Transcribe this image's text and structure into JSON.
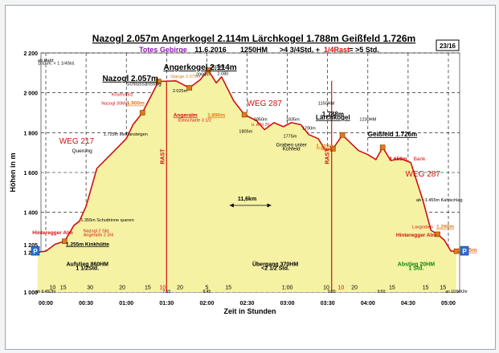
{
  "chart_data": {
    "type": "area",
    "title": "Nazogl 2.057m Angerkogel 2.114m Lärchkogel 1.788m Geißfeld 1.726m",
    "subtitle": {
      "region": "Totes Gebirge",
      "date": "11.6.2016",
      "ascent": "1250HM",
      "time": ">4 3/4Std. +",
      "rest": "1/4Rast",
      "total": "= >5 Std."
    },
    "page": "23/16",
    "xlabel": "Zeit in Stunden",
    "ylabel": "Höhen in m",
    "xlim": [
      0,
      330
    ],
    "ylim": [
      1000,
      2200
    ],
    "x_ticks": [
      {
        "value": 0,
        "label": "00:00"
      },
      {
        "value": 30,
        "label": "00:30"
      },
      {
        "value": 60,
        "label": "01:00"
      },
      {
        "value": 90,
        "label": "01:30"
      },
      {
        "value": 120,
        "label": "02:00"
      },
      {
        "value": 150,
        "label": "02:30"
      },
      {
        "value": 180,
        "label": "03:00"
      },
      {
        "value": 210,
        "label": "03:30"
      },
      {
        "value": 240,
        "label": "04:00"
      },
      {
        "value": 270,
        "label": "04:30"
      },
      {
        "value": 300,
        "label": "05:00"
      }
    ],
    "y_ticks": [
      {
        "value": 1000,
        "label": "1 000"
      },
      {
        "value": 1200,
        "label": "1 200"
      },
      {
        "value": 1400,
        "label": "1 400"
      },
      {
        "value": 1600,
        "label": "1 600"
      },
      {
        "value": 1800,
        "label": "1 800"
      },
      {
        "value": 2000,
        "label": "2 000"
      },
      {
        "value": 2200,
        "label": "2 200"
      }
    ],
    "y_side_labels": [
      {
        "value": 1205,
        "label": "1 205",
        "side": "left"
      }
    ],
    "parking_label": "P",
    "profile": [
      {
        "x": -6,
        "y": 1200
      },
      {
        "x": 0,
        "y": 1205
      },
      {
        "x": 7,
        "y": 1240
      },
      {
        "x": 14,
        "y": 1255
      },
      {
        "x": 21,
        "y": 1335
      },
      {
        "x": 25,
        "y": 1355
      },
      {
        "x": 30,
        "y": 1430
      },
      {
        "x": 38,
        "y": 1620
      },
      {
        "x": 52,
        "y": 1715
      },
      {
        "x": 60,
        "y": 1770
      },
      {
        "x": 65,
        "y": 1840
      },
      {
        "x": 72,
        "y": 1900
      },
      {
        "x": 84,
        "y": 2057
      },
      {
        "x": 97,
        "y": 2060
      },
      {
        "x": 107,
        "y": 2025
      },
      {
        "x": 115,
        "y": 2065
      },
      {
        "x": 121,
        "y": 2114
      },
      {
        "x": 127,
        "y": 2050
      },
      {
        "x": 131,
        "y": 2080
      },
      {
        "x": 140,
        "y": 1960
      },
      {
        "x": 148,
        "y": 1890
      },
      {
        "x": 157,
        "y": 1860
      },
      {
        "x": 163,
        "y": 1815
      },
      {
        "x": 170,
        "y": 1850
      },
      {
        "x": 177,
        "y": 1830
      },
      {
        "x": 183,
        "y": 1850
      },
      {
        "x": 190,
        "y": 1840
      },
      {
        "x": 196,
        "y": 1790
      },
      {
        "x": 203,
        "y": 1770
      },
      {
        "x": 208,
        "y": 1715
      },
      {
        "x": 214,
        "y": 1719
      },
      {
        "x": 221,
        "y": 1788
      },
      {
        "x": 233,
        "y": 1710
      },
      {
        "x": 240,
        "y": 1690
      },
      {
        "x": 246,
        "y": 1665
      },
      {
        "x": 251,
        "y": 1726
      },
      {
        "x": 257,
        "y": 1660
      },
      {
        "x": 264,
        "y": 1670
      },
      {
        "x": 272,
        "y": 1650
      },
      {
        "x": 281,
        "y": 1460
      },
      {
        "x": 287,
        "y": 1310
      },
      {
        "x": 292,
        "y": 1290
      },
      {
        "x": 297,
        "y": 1260
      },
      {
        "x": 302,
        "y": 1205
      },
      {
        "x": 306,
        "y": 1205
      }
    ],
    "points": [
      {
        "x": 14,
        "y": 1255
      },
      {
        "x": 72,
        "y": 1900
      },
      {
        "x": 84,
        "y": 2057
      },
      {
        "x": 107,
        "y": 2025
      },
      {
        "x": 121,
        "y": 2114
      },
      {
        "x": 148,
        "y": 1890
      },
      {
        "x": 214,
        "y": 1719
      },
      {
        "x": 221,
        "y": 1788
      },
      {
        "x": 251,
        "y": 1726
      },
      {
        "x": 292,
        "y": 1290
      },
      {
        "x": 306,
        "y": 1205
      }
    ],
    "rest_bars": [
      {
        "x": 90,
        "label": "RAST"
      },
      {
        "x": 213,
        "label": "RAST"
      }
    ],
    "annotations": [
      {
        "x": 115,
        "y": 2116,
        "text": "Angerkogel 2.114m",
        "color": "#000000",
        "size": 10,
        "bold": true,
        "underline": true,
        "anchor": "middle"
      },
      {
        "x": 63,
        "y": 2060,
        "text": "Nazogl 2.057m",
        "color": "#000000",
        "size": 10,
        "bold": true,
        "underline": true,
        "anchor": "middle"
      },
      {
        "x": 73,
        "y": 2037,
        "text": "Schlussanstieg",
        "color": "#222222",
        "size": 6.5,
        "anchor": "middle"
      },
      {
        "x": 104,
        "y": 2075,
        "text": "Stange 2.075m",
        "color": "#e07a1a",
        "size": 5.5,
        "anchor": "middle"
      },
      {
        "x": 128,
        "y": 2124,
        "text": "960HM",
        "color": "#000000",
        "size": 5.5,
        "anchor": "middle"
      },
      {
        "x": 117,
        "y": 2085,
        "text": "2065m",
        "color": "#000000",
        "size": 5.5,
        "anchor": "middle"
      },
      {
        "x": 132,
        "y": 2090,
        "text": "2.080",
        "color": "#000000",
        "size": 5.5,
        "anchor": "middle"
      },
      {
        "x": 100,
        "y": 2003,
        "text": "2.025m",
        "color": "#000000",
        "size": 5.5,
        "anchor": "middle"
      },
      {
        "x": -6,
        "y": 2155,
        "text": "ab Hald:",
        "color": "#000000",
        "size": 5.5,
        "anchor": "start"
      },
      {
        "x": -6,
        "y": 2142,
        "text": "101km; < 1 1/4Std.",
        "color": "#000000",
        "size": 5.5,
        "anchor": "start"
      },
      {
        "x": 57,
        "y": 1985,
        "text": "Kosenspitz",
        "color": "#d01010",
        "size": 5.5,
        "anchor": "middle"
      },
      {
        "x": 52,
        "y": 1940,
        "text": "Nazogl 30Min.",
        "color": "#d01010",
        "size": 5.5,
        "anchor": "middle"
      },
      {
        "x": 67,
        "y": 1940,
        "text": "1.900m",
        "color": "#e07a1a",
        "size": 6.5,
        "bold": true,
        "underline": true,
        "anchor": "middle"
      },
      {
        "x": 23,
        "y": 1745,
        "text": "WEG 217",
        "color": "#d01010",
        "size": 10,
        "anchor": "middle"
      },
      {
        "x": 43,
        "y": 1785,
        "text": "1.725m steil ansteigen",
        "color": "#000000",
        "size": 5.5,
        "anchor": "start"
      },
      {
        "x": 27,
        "y": 1700,
        "text": "Querung",
        "color": "#000000",
        "size": 6.5,
        "anchor": "middle"
      },
      {
        "x": 26,
        "y": 1355,
        "text": "1.355m Schuttrinne queren",
        "color": "#000000",
        "size": 5.5,
        "anchor": "start"
      },
      {
        "x": 28,
        "y": 1300,
        "text": "Nazogl 2 Std.",
        "color": "#d01010",
        "size": 5.5,
        "anchor": "start"
      },
      {
        "x": 28,
        "y": 1280,
        "text": "Angeralm 2 3/4",
        "color": "#d01010",
        "size": 5.5,
        "anchor": "start"
      },
      {
        "x": 15,
        "y": 1232,
        "text": "1.255m Kinkhütte",
        "color": "#000000",
        "size": 6.5,
        "bold": true,
        "underline": true,
        "anchor": "start"
      },
      {
        "x": -10,
        "y": 1290,
        "text": "Hinteregger Alm",
        "color": "#d01010",
        "size": 6.5,
        "bold": true,
        "anchor": "start"
      },
      {
        "x": 104,
        "y": 1880,
        "text": "Angeralm",
        "color": "#d01010",
        "size": 6.5,
        "bold": true,
        "underline": true,
        "anchor": "middle"
      },
      {
        "x": 127,
        "y": 1880,
        "text": "1.890m",
        "color": "#e07a1a",
        "size": 6.5,
        "bold": true,
        "underline": true,
        "anchor": "middle"
      },
      {
        "x": 111,
        "y": 1855,
        "text": "Elmscharte 3 1/2",
        "color": "#d01010",
        "size": 5.5,
        "anchor": "middle"
      },
      {
        "x": 163,
        "y": 1935,
        "text": "WEG 287",
        "color": "#d01010",
        "size": 10,
        "anchor": "middle"
      },
      {
        "x": 160,
        "y": 1860,
        "text": "1850m",
        "color": "#000000",
        "size": 5.5,
        "anchor": "middle"
      },
      {
        "x": 160,
        "y": 1833,
        "text": "ü. Albl 2h",
        "color": "#d01010",
        "size": 5.5,
        "anchor": "middle"
      },
      {
        "x": 149,
        "y": 1800,
        "text": "1805m",
        "color": "#000000",
        "size": 5.5,
        "anchor": "middle"
      },
      {
        "x": 184,
        "y": 1860,
        "text": "1835m",
        "color": "#000000",
        "size": 5.5,
        "anchor": "middle"
      },
      {
        "x": 182,
        "y": 1775,
        "text": "1775m",
        "color": "#000000",
        "size": 5.5,
        "anchor": "middle"
      },
      {
        "x": 196,
        "y": 1815,
        "text": "1790m",
        "color": "#000000",
        "size": 5.5,
        "anchor": "middle"
      },
      {
        "x": 209,
        "y": 1940,
        "text": "1150HM",
        "color": "#000000",
        "size": 5.5,
        "anchor": "middle"
      },
      {
        "x": 214,
        "y": 1882,
        "text": "1.788m",
        "color": "#000000",
        "size": 8,
        "bold": true,
        "anchor": "middle"
      },
      {
        "x": 214,
        "y": 1866,
        "text": "Lärchkogel",
        "color": "#000000",
        "size": 8,
        "bold": true,
        "underline": true,
        "anchor": "middle"
      },
      {
        "x": 183,
        "y": 1730,
        "text": "Graben unter",
        "color": "#000000",
        "size": 6.5,
        "anchor": "middle"
      },
      {
        "x": 183,
        "y": 1710,
        "text": "Kühfeld",
        "color": "#000000",
        "size": 6.5,
        "anchor": "middle"
      },
      {
        "x": 208,
        "y": 1725,
        "text": "1.719m",
        "color": "#e07a1a",
        "size": 6.5,
        "bold": true,
        "underline": true,
        "anchor": "middle"
      },
      {
        "x": 208,
        "y": 1710,
        "text": "Albl",
        "color": "#e07a1a",
        "size": 5.5,
        "anchor": "middle"
      },
      {
        "x": 240,
        "y": 1860,
        "text": "1230HM",
        "color": "#000000",
        "size": 5.5,
        "anchor": "middle"
      },
      {
        "x": 240,
        "y": 1781,
        "text": "Geißfeld 1.726m",
        "color": "#000000",
        "size": 8,
        "bold": true,
        "underline": true,
        "anchor": "start"
      },
      {
        "x": 256,
        "y": 1660,
        "text": "1.650m",
        "color": "#d01010",
        "size": 6.5,
        "bold": true,
        "anchor": "start"
      },
      {
        "x": 274,
        "y": 1660,
        "text": "Bank",
        "color": "#d01010",
        "size": 6.5,
        "anchor": "start"
      },
      {
        "x": 268,
        "y": 1580,
        "text": "WEG 287",
        "color": "#d01010",
        "size": 10,
        "anchor": "start"
      },
      {
        "x": 276,
        "y": 1455,
        "text": "ab ~1.455m Kahlschlag",
        "color": "#000000",
        "size": 5.5,
        "anchor": "start"
      },
      {
        "x": 273,
        "y": 1320,
        "text": "Laxgraben",
        "color": "#d01010",
        "size": 5.5,
        "anchor": "start"
      },
      {
        "x": 291,
        "y": 1320,
        "text": "1.290m",
        "color": "#e07a1a",
        "size": 6.5,
        "bold": true,
        "underline": true,
        "anchor": "start"
      },
      {
        "x": 261,
        "y": 1278,
        "text": "Hinteregger Alm",
        "color": "#d01010",
        "size": 6.5,
        "bold": true,
        "anchor": "start"
      },
      {
        "x": 307,
        "y": 1202,
        "text": "1.205m",
        "color": "#e07a1a",
        "size": 7,
        "bold": true,
        "underline": true,
        "anchor": "start"
      },
      {
        "x": 150,
        "y": 1460,
        "text": "11,6km",
        "color": "#000000",
        "size": 7,
        "bold": true,
        "anchor": "middle"
      },
      {
        "x": 31,
        "y": 1130,
        "text": "Aufstieg 860HM",
        "color": "#000000",
        "size": 7,
        "bold": true,
        "anchor": "middle"
      },
      {
        "x": 31,
        "y": 1110,
        "text": "1 1/2Std.",
        "color": "#000000",
        "size": 7,
        "bold": true,
        "anchor": "middle"
      },
      {
        "x": 171,
        "y": 1130,
        "text": "Übergang 370HM",
        "color": "#000000",
        "size": 7,
        "bold": true,
        "anchor": "middle"
      },
      {
        "x": 171,
        "y": 1110,
        "text": "<2 1/2 Std.",
        "color": "#000000",
        "size": 7,
        "bold": true,
        "anchor": "middle"
      },
      {
        "x": 276,
        "y": 1130,
        "text": "Abstieg 20HM",
        "color": "#0a8a0a",
        "size": 7,
        "bold": true,
        "anchor": "middle"
      },
      {
        "x": 276,
        "y": 1110,
        "text": "1 Std.",
        "color": "#0a8a0a",
        "size": 7,
        "bold": true,
        "anchor": "middle"
      },
      {
        "x": 0,
        "y": 995,
        "text": "ab 6:45Uhr",
        "color": "#000000",
        "size": 5,
        "anchor": "middle"
      },
      {
        "x": 90,
        "y": 995,
        "text": "7:15",
        "color": "#000000",
        "size": 5,
        "anchor": "middle"
      },
      {
        "x": 120,
        "y": 995,
        "text": "8:45",
        "color": "#000000",
        "size": 5,
        "anchor": "middle"
      },
      {
        "x": 213,
        "y": 995,
        "text": "9:20",
        "color": "#000000",
        "size": 5,
        "anchor": "middle"
      },
      {
        "x": 250,
        "y": 995,
        "text": "9:50",
        "color": "#000000",
        "size": 5,
        "anchor": "middle"
      },
      {
        "x": 306,
        "y": 995,
        "text": "an 10:50Uhr",
        "color": "#000000",
        "size": 5,
        "anchor": "middle"
      }
    ],
    "distance_arrow": {
      "x1": 137,
      "x2": 168,
      "y": 1435
    },
    "sections": [
      {
        "x1": 0,
        "x2": 84
      },
      {
        "x1": 84,
        "x2": 246
      },
      {
        "x1": 246,
        "x2": 306
      }
    ],
    "durations": [
      {
        "x": 5,
        "label": "10",
        "color": "#000000"
      },
      {
        "x": 13,
        "label": "15",
        "color": "#000000"
      },
      {
        "x": 33,
        "label": "30",
        "color": "#000000"
      },
      {
        "x": 57,
        "label": "20",
        "color": "#000000"
      },
      {
        "x": 76,
        "label": "15",
        "color": "#000000"
      },
      {
        "x": 87,
        "label": "10",
        "color": "#d01010"
      },
      {
        "x": 100,
        "label": "20",
        "color": "#000000"
      },
      {
        "x": 120,
        "label": "5",
        "color": "#000000"
      },
      {
        "x": 136,
        "label": "15",
        "color": "#000000"
      },
      {
        "x": 180,
        "label": "1:00",
        "color": "#000000"
      },
      {
        "x": 209,
        "label": "10",
        "color": "#000000"
      },
      {
        "x": 220,
        "label": "10",
        "color": "#d01010"
      },
      {
        "x": 230,
        "label": "20",
        "color": "#000000"
      },
      {
        "x": 258,
        "label": "15",
        "color": "#000000"
      },
      {
        "x": 283,
        "label": "15",
        "color": "#000000"
      },
      {
        "x": 296,
        "label": "15",
        "color": "#000000"
      }
    ],
    "colors": {
      "fill": "#f6f2a4",
      "line": "#d01010",
      "point": "#e07a1a",
      "grid": "#000000",
      "rest": "#d01010",
      "parking": "#2f6fd6"
    }
  }
}
